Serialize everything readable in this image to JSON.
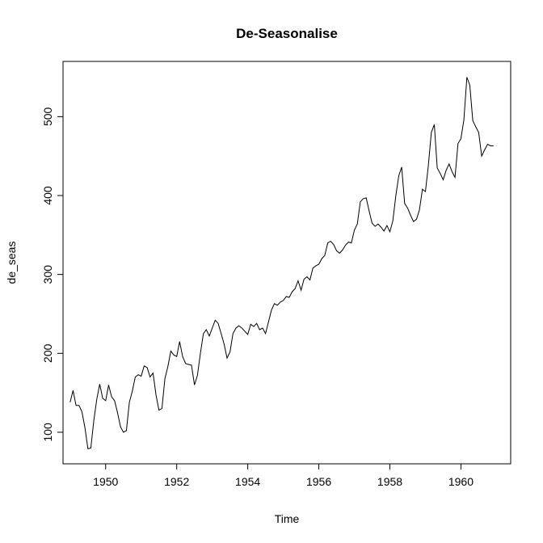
{
  "chart_data": {
    "type": "line",
    "title": "De-Seasonalise",
    "xlabel": "Time",
    "ylabel": "de_seas",
    "xlim": [
      1948.8,
      1961.4
    ],
    "ylim": [
      60,
      570
    ],
    "x_ticks": [
      1950,
      1952,
      1954,
      1956,
      1958,
      1960
    ],
    "x_tick_labels": [
      "1950",
      "1952",
      "1954",
      "1956",
      "1958",
      "1960"
    ],
    "y_ticks": [
      100,
      200,
      300,
      400,
      500
    ],
    "y_tick_labels": [
      "100",
      "200",
      "300",
      "400",
      "500"
    ],
    "grid": false,
    "line_color": "#000000",
    "series": [
      {
        "x": [
          1949.0,
          1949.083,
          1949.167,
          1949.25,
          1949.333,
          1949.417,
          1949.5,
          1949.583,
          1949.667,
          1949.75,
          1949.833,
          1949.917,
          1950.0,
          1950.083,
          1950.167,
          1950.25,
          1950.333,
          1950.417,
          1950.5,
          1950.583,
          1950.667,
          1950.75,
          1950.833,
          1950.917,
          1951.0,
          1951.083,
          1951.167,
          1951.25,
          1951.333,
          1951.417,
          1951.5,
          1951.583,
          1951.667,
          1951.75,
          1951.833,
          1951.917,
          1952.0,
          1952.083,
          1952.167,
          1952.25,
          1952.333,
          1952.417,
          1952.5,
          1952.583,
          1952.667,
          1952.75,
          1952.833,
          1952.917,
          1953.0,
          1953.083,
          1953.167,
          1953.25,
          1953.333,
          1953.417,
          1953.5,
          1953.583,
          1953.667,
          1953.75,
          1953.833,
          1953.917,
          1954.0,
          1954.083,
          1954.167,
          1954.25,
          1954.333,
          1954.417,
          1954.5,
          1954.583,
          1954.667,
          1954.75,
          1954.833,
          1954.917,
          1955.0,
          1955.083,
          1955.167,
          1955.25,
          1955.333,
          1955.417,
          1955.5,
          1955.583,
          1955.667,
          1955.75,
          1955.833,
          1955.917,
          1956.0,
          1956.083,
          1956.167,
          1956.25,
          1956.333,
          1956.417,
          1956.5,
          1956.583,
          1956.667,
          1956.75,
          1956.833,
          1956.917,
          1957.0,
          1957.083,
          1957.167,
          1957.25,
          1957.333,
          1957.417,
          1957.5,
          1957.583,
          1957.667,
          1957.75,
          1957.833,
          1957.917,
          1958.0,
          1958.083,
          1958.167,
          1958.25,
          1958.333,
          1958.417,
          1958.5,
          1958.583,
          1958.667,
          1958.75,
          1958.833,
          1958.917,
          1959.0,
          1959.083,
          1959.167,
          1959.25,
          1959.333,
          1959.417,
          1959.5,
          1959.583,
          1959.667,
          1959.75,
          1959.833,
          1959.917,
          1960.0,
          1960.083,
          1960.167,
          1960.25,
          1960.333,
          1960.417,
          1960.5,
          1960.583,
          1960.667,
          1960.75,
          1960.833,
          1960.917
        ],
        "y": [
          138,
          153,
          134,
          134,
          126,
          106,
          79,
          80,
          115,
          142,
          161,
          143,
          140,
          160,
          145,
          140,
          125,
          107,
          100,
          102,
          138,
          152,
          170,
          173,
          171,
          184,
          182,
          170,
          175,
          147,
          128,
          130,
          168,
          183,
          203,
          198,
          196,
          215,
          196,
          187,
          186,
          185,
          160,
          172,
          200,
          225,
          230,
          222,
          232,
          242,
          238,
          225,
          212,
          194,
          202,
          225,
          232,
          235,
          232,
          228,
          224,
          237,
          234,
          238,
          230,
          232,
          225,
          240,
          255,
          263,
          261,
          265,
          267,
          272,
          271,
          278,
          282,
          292,
          280,
          294,
          297,
          293,
          308,
          311,
          313,
          320,
          324,
          340,
          342,
          338,
          330,
          327,
          331,
          337,
          341,
          340,
          356,
          364,
          392,
          396,
          397,
          380,
          365,
          361,
          364,
          360,
          355,
          362,
          354,
          368,
          400,
          425,
          436,
          390,
          384,
          375,
          367,
          370,
          382,
          408,
          405,
          438,
          480,
          490,
          435,
          428,
          420,
          432,
          440,
          430,
          423,
          466,
          472,
          496,
          550,
          540,
          495,
          487,
          480,
          450,
          458,
          465,
          463,
          463
        ]
      }
    ]
  }
}
